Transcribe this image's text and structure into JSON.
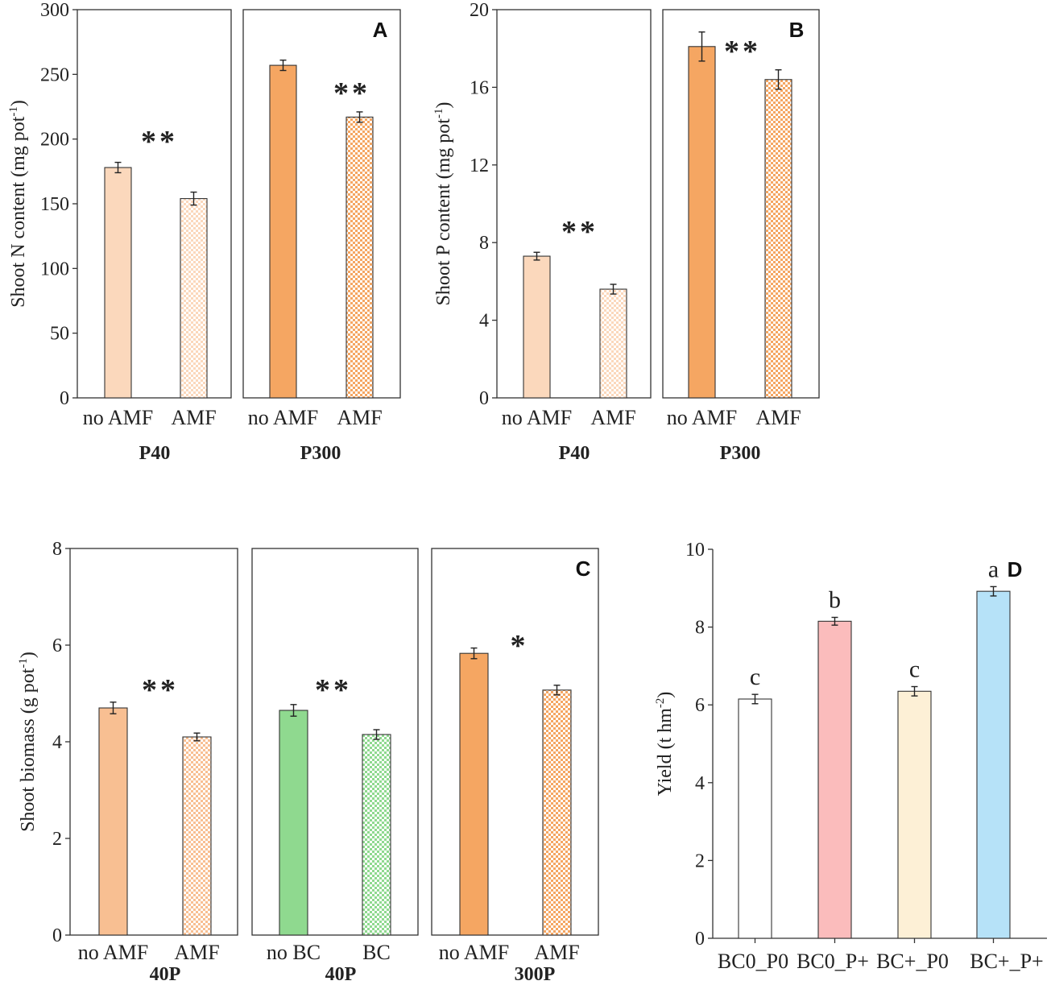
{
  "colors": {
    "light_orange": "#fbd8bc",
    "orange": "#f5a662",
    "peach": "#f8bf92",
    "green": "#8fd98f",
    "pink": "#fbbcbc",
    "cream": "#fdf0d6",
    "blue": "#b6e2f8",
    "white": "#ffffff"
  },
  "chart_data": [
    {
      "id": "A",
      "type": "bar",
      "panel_label": "A",
      "ylabel": "Shoot N content (mg pot",
      "ylabel_sup": "-1",
      "ylabel_end": ")",
      "ylim": [
        0,
        300
      ],
      "yticks": [
        0,
        50,
        100,
        150,
        200,
        250,
        300
      ],
      "groups": [
        {
          "name": "P40",
          "significance": "**",
          "bars": [
            {
              "category": "no AMF",
              "value": 178,
              "error": 4,
              "fill": "light_orange",
              "pattern": "solid"
            },
            {
              "category": "AMF",
              "value": 154,
              "error": 5,
              "fill": "light_orange",
              "pattern": "checker"
            }
          ]
        },
        {
          "name": "P300",
          "significance": "**",
          "bars": [
            {
              "category": "no AMF",
              "value": 257,
              "error": 4,
              "fill": "orange",
              "pattern": "solid"
            },
            {
              "category": "AMF",
              "value": 217,
              "error": 4,
              "fill": "orange",
              "pattern": "checker"
            }
          ]
        }
      ]
    },
    {
      "id": "B",
      "type": "bar",
      "panel_label": "B",
      "ylabel": "Shoot P content (mg pot",
      "ylabel_sup": "-1",
      "ylabel_end": ")",
      "ylim": [
        0,
        20
      ],
      "yticks": [
        0,
        4,
        8,
        12,
        16,
        20
      ],
      "groups": [
        {
          "name": "P40",
          "significance": "**",
          "bars": [
            {
              "category": "no AMF",
              "value": 7.3,
              "error": 0.2,
              "fill": "light_orange",
              "pattern": "solid"
            },
            {
              "category": "AMF",
              "value": 5.6,
              "error": 0.25,
              "fill": "light_orange",
              "pattern": "checker"
            }
          ]
        },
        {
          "name": "P300",
          "significance": "**",
          "bars": [
            {
              "category": "no AMF",
              "value": 18.1,
              "error": 0.75,
              "fill": "orange",
              "pattern": "solid"
            },
            {
              "category": "AMF",
              "value": 16.4,
              "error": 0.5,
              "fill": "orange",
              "pattern": "checker"
            }
          ]
        }
      ]
    },
    {
      "id": "C",
      "type": "bar",
      "panel_label": "C",
      "ylabel": "Shoot biomass (g pot",
      "ylabel_sup": "-1",
      "ylabel_end": ")",
      "ylim": [
        0,
        8
      ],
      "yticks": [
        0,
        2,
        4,
        6,
        8
      ],
      "groups": [
        {
          "name": "40P",
          "significance": "**",
          "bars": [
            {
              "category": "no AMF",
              "value": 4.7,
              "error": 0.12,
              "fill": "peach",
              "pattern": "solid"
            },
            {
              "category": "AMF",
              "value": 4.1,
              "error": 0.08,
              "fill": "peach",
              "pattern": "checker"
            }
          ]
        },
        {
          "name": "40P",
          "significance": "**",
          "bars": [
            {
              "category": "no BC",
              "value": 4.65,
              "error": 0.12,
              "fill": "green",
              "pattern": "solid"
            },
            {
              "category": "BC",
              "value": 4.15,
              "error": 0.1,
              "fill": "green",
              "pattern": "checker"
            }
          ]
        },
        {
          "name": "300P",
          "significance": "*",
          "bars": [
            {
              "category": "no AMF",
              "value": 5.83,
              "error": 0.11,
              "fill": "orange",
              "pattern": "solid"
            },
            {
              "category": "AMF",
              "value": 5.07,
              "error": 0.1,
              "fill": "orange",
              "pattern": "checker"
            }
          ]
        }
      ]
    },
    {
      "id": "D",
      "type": "bar",
      "panel_label": "D",
      "ylabel": "Yield (t hm",
      "ylabel_sup": "-2",
      "ylabel_end": ")",
      "ylim": [
        0,
        10
      ],
      "yticks": [
        0,
        2,
        4,
        6,
        8,
        10
      ],
      "categories": [
        "BC0_P0",
        "BC0_P+",
        "BC+_P0",
        "BC+_P+"
      ],
      "values": [
        6.15,
        8.15,
        6.35,
        8.92
      ],
      "errors": [
        0.12,
        0.1,
        0.12,
        0.12
      ],
      "letters": [
        "c",
        "b",
        "c",
        "a"
      ],
      "fills": [
        "white",
        "pink",
        "cream",
        "blue"
      ]
    }
  ]
}
